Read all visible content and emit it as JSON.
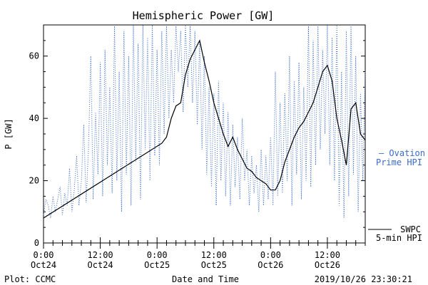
{
  "chart_data": {
    "type": "line",
    "title": "Hemispheric Power [GW]",
    "xlabel": "Date and Time",
    "ylabel": "P [GW]",
    "ylim": [
      0,
      70
    ],
    "yticks": [
      0,
      20,
      40,
      60
    ],
    "xlim_hours": [
      0,
      68
    ],
    "xticks": [
      {
        "hour": 0,
        "time": "0:00",
        "date": "Oct24"
      },
      {
        "hour": 12,
        "time": "12:00",
        "date": "Oct24"
      },
      {
        "hour": 24,
        "time": "0:00",
        "date": "Oct25"
      },
      {
        "hour": 36,
        "time": "12:00",
        "date": "Oct25"
      },
      {
        "hour": 48,
        "time": "0:00",
        "date": "Oct26"
      },
      {
        "hour": 60,
        "time": "12:00",
        "date": "Oct26"
      }
    ],
    "series": [
      {
        "name": "SWPC 5-min HPI",
        "color": "#000000",
        "style": "solid",
        "points": [
          [
            0,
            8
          ],
          [
            25,
            32
          ],
          [
            26,
            34
          ],
          [
            27,
            40
          ],
          [
            28,
            44
          ],
          [
            29,
            45
          ],
          [
            30,
            54
          ],
          [
            31,
            59
          ],
          [
            32,
            62
          ],
          [
            33,
            65
          ],
          [
            34,
            58
          ],
          [
            35,
            52
          ],
          [
            36,
            45
          ],
          [
            37,
            40
          ],
          [
            38,
            35
          ],
          [
            39,
            31
          ],
          [
            40,
            34
          ],
          [
            41,
            30
          ],
          [
            42,
            27
          ],
          [
            43,
            24
          ],
          [
            44,
            23
          ],
          [
            45,
            21
          ],
          [
            46,
            20
          ],
          [
            47,
            19
          ],
          [
            48,
            17
          ],
          [
            49,
            17
          ],
          [
            50,
            20
          ],
          [
            51,
            26
          ],
          [
            52,
            30
          ],
          [
            53,
            34
          ],
          [
            54,
            37
          ],
          [
            55,
            39
          ],
          [
            56,
            42
          ],
          [
            57,
            45
          ],
          [
            58,
            50
          ],
          [
            59,
            55
          ],
          [
            60,
            57
          ],
          [
            61,
            52
          ],
          [
            62,
            40
          ],
          [
            63,
            33
          ],
          [
            64,
            25
          ],
          [
            65,
            43
          ],
          [
            66,
            45
          ],
          [
            67,
            35
          ],
          [
            68,
            33
          ]
        ]
      },
      {
        "name": "Ovation Prime HPI",
        "color": "#3a6bc9",
        "style": "dotted",
        "points": [
          [
            0,
            9
          ],
          [
            0.5,
            14
          ],
          [
            1,
            12
          ],
          [
            1.5,
            8
          ],
          [
            2,
            15
          ],
          [
            2.5,
            10
          ],
          [
            3,
            14
          ],
          [
            3.5,
            18
          ],
          [
            4,
            9
          ],
          [
            4.5,
            16
          ],
          [
            5,
            12
          ],
          [
            5.5,
            24
          ],
          [
            6,
            10
          ],
          [
            6.5,
            17
          ],
          [
            7,
            28
          ],
          [
            7.5,
            12
          ],
          [
            8,
            20
          ],
          [
            8.5,
            38
          ],
          [
            9,
            13
          ],
          [
            9.5,
            30
          ],
          [
            10,
            60
          ],
          [
            10.5,
            14
          ],
          [
            11,
            42
          ],
          [
            11.5,
            22
          ],
          [
            12,
            58
          ],
          [
            12.5,
            15
          ],
          [
            13,
            62
          ],
          [
            13.5,
            25
          ],
          [
            14,
            50
          ],
          [
            14.5,
            16
          ],
          [
            15,
            70
          ],
          [
            15.5,
            20
          ],
          [
            16,
            55
          ],
          [
            16.5,
            10
          ],
          [
            17,
            68
          ],
          [
            17.5,
            22
          ],
          [
            18,
            60
          ],
          [
            18.5,
            12
          ],
          [
            19,
            70
          ],
          [
            19.5,
            26
          ],
          [
            20,
            64
          ],
          [
            20.5,
            14
          ],
          [
            21,
            70
          ],
          [
            21.5,
            30
          ],
          [
            22,
            66
          ],
          [
            22.5,
            20
          ],
          [
            23,
            70
          ],
          [
            23.5,
            28
          ],
          [
            24,
            62
          ],
          [
            24.5,
            25
          ],
          [
            25,
            68
          ],
          [
            25.5,
            35
          ],
          [
            26,
            70
          ],
          [
            26.5,
            40
          ],
          [
            27,
            62
          ],
          [
            27.5,
            45
          ],
          [
            28,
            70
          ],
          [
            28.5,
            55
          ],
          [
            29,
            68
          ],
          [
            29.5,
            42
          ],
          [
            30,
            70
          ],
          [
            30.5,
            50
          ],
          [
            31,
            70
          ],
          [
            31.5,
            45
          ],
          [
            32,
            68
          ],
          [
            32.5,
            38
          ],
          [
            33,
            65
          ],
          [
            33.5,
            30
          ],
          [
            34,
            60
          ],
          [
            34.5,
            22
          ],
          [
            35,
            50
          ],
          [
            35.5,
            18
          ],
          [
            36,
            48
          ],
          [
            36.5,
            12
          ],
          [
            37,
            52
          ],
          [
            37.5,
            20
          ],
          [
            38,
            45
          ],
          [
            38.5,
            15
          ],
          [
            39,
            42
          ],
          [
            39.5,
            12
          ],
          [
            40,
            38
          ],
          [
            40.5,
            18
          ],
          [
            41,
            34
          ],
          [
            41.5,
            14
          ],
          [
            42,
            40
          ],
          [
            42.5,
            20
          ],
          [
            43,
            30
          ],
          [
            43.5,
            12
          ],
          [
            44,
            28
          ],
          [
            44.5,
            16
          ],
          [
            45,
            25
          ],
          [
            45.5,
            10
          ],
          [
            46,
            30
          ],
          [
            46.5,
            12
          ],
          [
            47,
            28
          ],
          [
            47.5,
            14
          ],
          [
            48,
            34
          ],
          [
            48.5,
            12
          ],
          [
            49,
            55
          ],
          [
            49.5,
            15
          ],
          [
            50,
            45
          ],
          [
            50.5,
            16
          ],
          [
            51,
            48
          ],
          [
            51.5,
            20
          ],
          [
            52,
            60
          ],
          [
            52.5,
            12
          ],
          [
            53,
            52
          ],
          [
            53.5,
            22
          ],
          [
            54,
            58
          ],
          [
            54.5,
            14
          ],
          [
            55,
            50
          ],
          [
            55.5,
            20
          ],
          [
            56,
            70
          ],
          [
            56.5,
            18
          ],
          [
            57,
            65
          ],
          [
            57.5,
            25
          ],
          [
            58,
            70
          ],
          [
            58.5,
            30
          ],
          [
            59,
            62
          ],
          [
            59.5,
            35
          ],
          [
            60,
            70
          ],
          [
            60.5,
            25
          ],
          [
            61,
            66
          ],
          [
            61.5,
            20
          ],
          [
            62,
            70
          ],
          [
            62.5,
            12
          ],
          [
            63,
            55
          ],
          [
            63.5,
            8
          ],
          [
            64,
            68
          ],
          [
            64.5,
            15
          ],
          [
            65,
            70
          ],
          [
            65.5,
            22
          ],
          [
            66,
            60
          ],
          [
            66.5,
            10
          ],
          [
            67,
            48
          ],
          [
            67.5,
            20
          ],
          [
            68,
            55
          ]
        ]
      }
    ],
    "legend": {
      "blue_line1": "— Ovation",
      "blue_line2": "Prime HPI",
      "black_line1": "SWPC",
      "black_line2": "5-min HPI"
    },
    "footer": {
      "left": "Plot: CCMC",
      "center": "Date and Time",
      "right": "2019/10/26 23:30:21"
    }
  }
}
